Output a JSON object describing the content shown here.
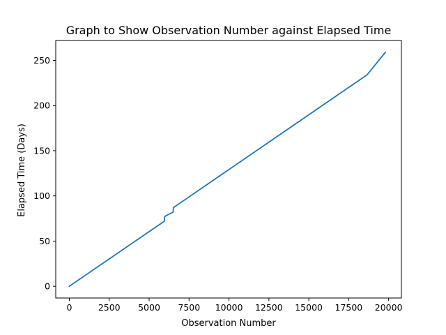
{
  "chart_data": {
    "type": "line",
    "title": "Graph to Show Observation Number against Elapsed Time",
    "xlabel": "Observation Number",
    "ylabel": "Elapsed Time (Days)",
    "xlim": [
      -850,
      20800
    ],
    "ylim": [
      -13,
      272
    ],
    "x_ticks": [
      0,
      2500,
      5000,
      7500,
      10000,
      12500,
      15000,
      17500,
      20000
    ],
    "x_tick_labels": [
      "0",
      "2500",
      "5000",
      "7500",
      "10000",
      "12500",
      "15000",
      "17500",
      "20000"
    ],
    "y_ticks": [
      0,
      50,
      100,
      150,
      200,
      250
    ],
    "y_tick_labels": [
      "0",
      "50",
      "100",
      "150",
      "200",
      "250"
    ],
    "grid": false,
    "series": [
      {
        "color": "#1f77b4",
        "x": [
          0,
          5950,
          5970,
          6050,
          6500,
          6520,
          6600,
          18650,
          19800
        ],
        "y": [
          0,
          72,
          77,
          78,
          82,
          87,
          88,
          234,
          259
        ]
      }
    ]
  }
}
